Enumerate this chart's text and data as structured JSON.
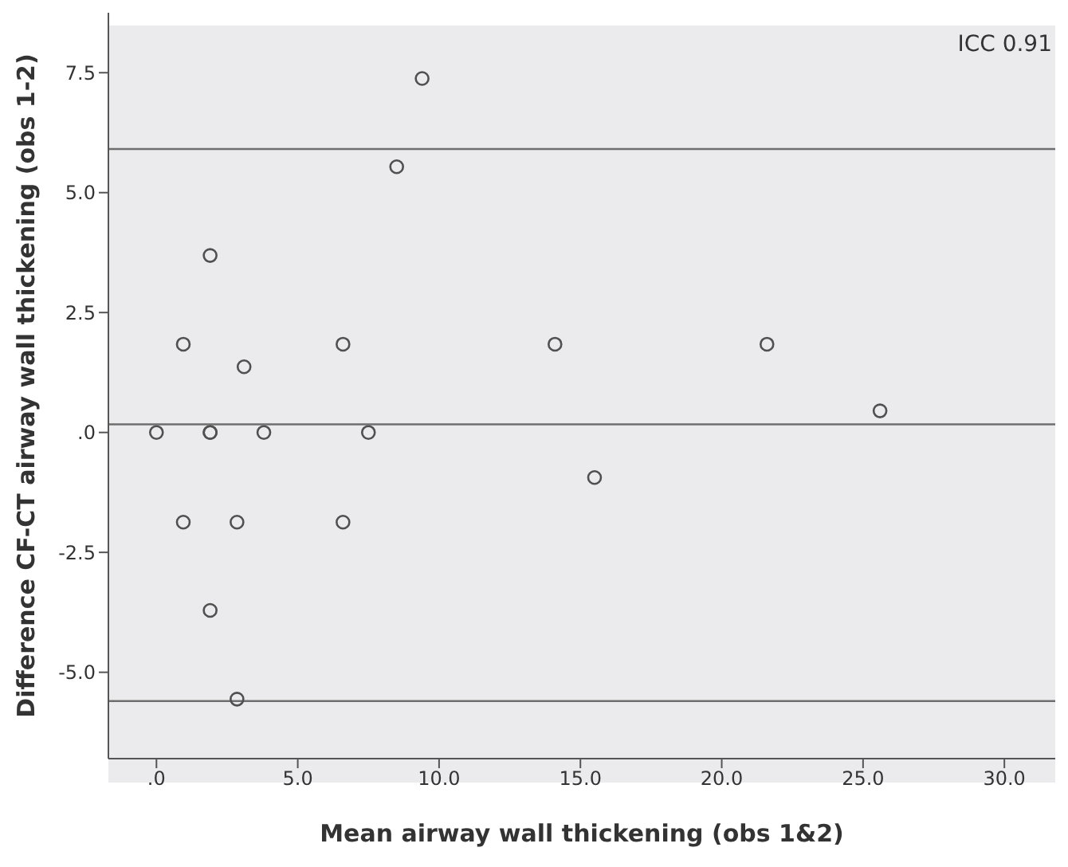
{
  "chart_data": {
    "type": "scatter",
    "xlabel": "Mean airway wall thickening (obs 1&2)",
    "ylabel": "Difference CF-CT airway wall thickening (obs 1-2)",
    "annotations": [
      "ICC 0.91"
    ],
    "x": [
      0,
      0.95,
      0.95,
      1.9,
      1.9,
      1.9,
      1.9,
      2.85,
      2.85,
      3.1,
      3.8,
      6.6,
      6.6,
      7.5,
      8.5,
      9.4,
      14.1,
      15.5,
      21.6,
      25.6
    ],
    "series": [
      {
        "color": "#505050",
        "values": [
          0,
          1.84,
          -1.87,
          3.69,
          0,
          0,
          -3.71,
          -1.87,
          -5.56,
          1.37,
          0,
          1.84,
          -1.87,
          0,
          5.54,
          7.38,
          1.84,
          -0.94,
          1.84,
          0.45
        ]
      }
    ],
    "marker": "circle",
    "grid": false,
    "xlim": [
      -1.7,
      31.8
    ],
    "xticks": [
      {
        "value": 0,
        "label": ".0"
      },
      {
        "value": 5,
        "label": "5.0"
      },
      {
        "value": 10,
        "label": "10.0"
      },
      {
        "value": 15,
        "label": "15.0"
      },
      {
        "value": 20,
        "label": "20.0"
      },
      {
        "value": 25,
        "label": "25.0"
      },
      {
        "value": 30,
        "label": "30.0"
      }
    ],
    "ylim": [
      -6.8,
      8.75
    ],
    "yticks": [
      {
        "value": -5,
        "label": "-5.0"
      },
      {
        "value": -2.5,
        "label": "-2.5"
      },
      {
        "value": 0,
        "label": ".0"
      },
      {
        "value": 2.5,
        "label": "2.5"
      },
      {
        "value": 5,
        "label": "5.0"
      },
      {
        "value": 7.5,
        "label": "7.5"
      }
    ],
    "ref_lines": [
      {
        "axis": "y",
        "value": 5.91,
        "color": "#6e6e6e"
      },
      {
        "axis": "y",
        "value": 0.17,
        "color": "#6e6e6e"
      },
      {
        "axis": "y",
        "value": -5.6,
        "color": "#6e6e6e"
      }
    ]
  }
}
